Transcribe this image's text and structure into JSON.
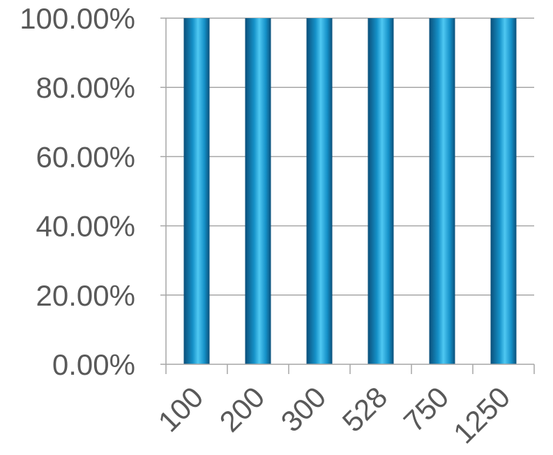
{
  "chart_data": {
    "type": "bar",
    "categories": [
      "100",
      "200",
      "300",
      "528",
      "750",
      "1250"
    ],
    "values": [
      100,
      100,
      100,
      100,
      100,
      100
    ],
    "title": "",
    "xlabel": "",
    "ylabel": "",
    "ylim": [
      0,
      100
    ],
    "yticks": [
      "0.00%",
      "20.00%",
      "40.00%",
      "60.00%",
      "80.00%",
      "100.00%"
    ],
    "grid": true,
    "legend": "none",
    "colors": {
      "bar_light": "#4fc8f2",
      "bar_mid": "#1591c8",
      "bar_dark": "#0b4f7a",
      "grid": "#a6a6a6",
      "axis": "#a6a6a6",
      "text": "#595959"
    }
  }
}
